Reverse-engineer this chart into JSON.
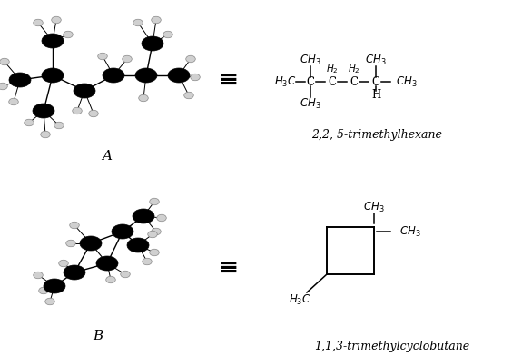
{
  "bg_color": "#ffffff",
  "label_A": "A",
  "label_B": "B",
  "name_A": "2,2, 5-trimethylhexane",
  "name_B": "1,1,3-trimethylcyclobutane",
  "equiv_symbol": "≡",
  "font_size_label": 11,
  "font_size_name": 9,
  "font_size_chem": 8.5,
  "font_size_small": 7.5
}
